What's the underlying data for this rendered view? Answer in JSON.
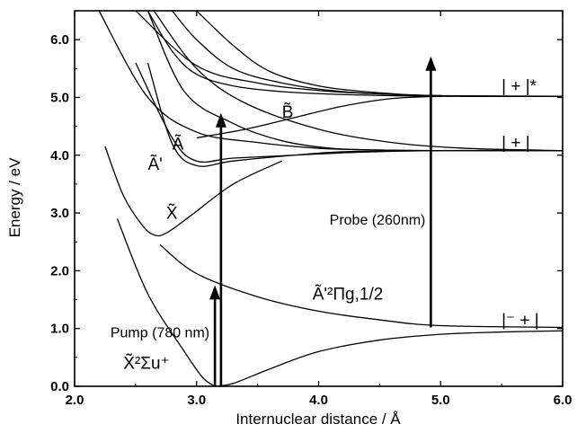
{
  "chart_data": {
    "type": "line",
    "xlabel": "Internuclear distance / Å",
    "ylabel": "Energy / eV",
    "xlim": [
      2.0,
      6.0
    ],
    "ylim": [
      0.0,
      6.5
    ],
    "x_ticks": [
      "2.0",
      "3.0",
      "4.0",
      "5.0",
      "6.0"
    ],
    "y_ticks": [
      "0.0",
      "1.0",
      "2.0",
      "3.0",
      "4.0",
      "5.0",
      "6.0"
    ],
    "series": [
      {
        "x": [
          3.15,
          3.3,
          3.6,
          4.0,
          4.5,
          5.0,
          5.5,
          6.0
        ],
        "y": [
          0.0,
          0.05,
          0.3,
          0.6,
          0.8,
          0.9,
          0.94,
          0.96
        ]
      },
      {
        "x": [
          2.35,
          2.6,
          2.9,
          3.05,
          3.15
        ],
        "y": [
          2.9,
          1.6,
          0.6,
          0.15,
          0.0
        ]
      },
      {
        "x": [
          2.7,
          3.0,
          3.5,
          4.0,
          4.5,
          5.0,
          6.0
        ],
        "y": [
          2.45,
          1.95,
          1.55,
          1.3,
          1.15,
          1.05,
          1.02
        ]
      },
      {
        "x": [
          2.25,
          2.4,
          2.55,
          2.65,
          2.75,
          2.95,
          3.3,
          3.7
        ],
        "y": [
          4.15,
          3.3,
          2.8,
          2.62,
          2.65,
          2.95,
          3.5,
          3.9
        ]
      },
      {
        "x": [
          2.5,
          2.8,
          3.0,
          3.3,
          3.8,
          4.3,
          5.0,
          6.0
        ],
        "y": [
          5.6,
          4.3,
          3.9,
          3.95,
          4.0,
          4.05,
          4.08,
          4.08
        ]
      },
      {
        "x": [
          2.6,
          2.8,
          3.0,
          3.3,
          3.8,
          4.2,
          5.0
        ],
        "y": [
          5.6,
          4.2,
          3.82,
          3.9,
          4.0,
          4.06,
          4.08
        ]
      },
      {
        "x": [
          2.2,
          2.6,
          3.0,
          3.5,
          4.0,
          4.5,
          5.0,
          6.0
        ],
        "y": [
          6.5,
          5.0,
          4.4,
          4.22,
          4.12,
          4.09,
          4.08,
          4.08
        ]
      },
      {
        "x": [
          3.0,
          3.4,
          3.8,
          4.2,
          4.6,
          5.0
        ],
        "y": [
          4.3,
          4.45,
          4.65,
          4.85,
          4.98,
          5.02
        ]
      },
      {
        "x": [
          2.6,
          2.8,
          3.0,
          3.3,
          3.7,
          4.2,
          5.0,
          6.0
        ],
        "y": [
          6.5,
          5.8,
          5.4,
          5.2,
          5.1,
          5.05,
          5.02,
          5.02
        ]
      },
      {
        "x": [
          2.8,
          3.0,
          3.3,
          3.7,
          4.2,
          5.0,
          6.0
        ],
        "y": [
          6.5,
          6.0,
          5.5,
          5.25,
          5.1,
          5.03,
          5.02
        ]
      },
      {
        "x": [
          2.5,
          3.0,
          3.5,
          4.0,
          4.5,
          5.0,
          6.0
        ],
        "y": [
          6.5,
          5.55,
          5.25,
          5.12,
          5.06,
          5.03,
          5.02
        ]
      },
      {
        "x": [
          3.0,
          3.3,
          3.6,
          4.0,
          4.5,
          5.0,
          6.0
        ],
        "y": [
          6.5,
          5.9,
          5.45,
          5.2,
          5.08,
          5.03,
          5.02
        ]
      },
      {
        "x": [
          2.65,
          3.0,
          3.4,
          4.0,
          4.6,
          5.2,
          6.0
        ],
        "y": [
          6.5,
          5.5,
          4.9,
          4.45,
          4.22,
          4.12,
          4.08
        ]
      },
      {
        "x": [
          2.6,
          2.9,
          3.3,
          3.7,
          4.1,
          4.5,
          5.0,
          6.0
        ],
        "y": [
          6.5,
          5.1,
          4.55,
          4.25,
          4.12,
          4.09,
          4.08,
          4.08
        ]
      }
    ],
    "arrows": [
      {
        "label": "Pump (780 nm)",
        "x": 3.15,
        "y_from": 0.0,
        "y_to": 1.72
      },
      {
        "label": "",
        "x": 3.2,
        "y_from": 0.0,
        "y_to": 4.7
      },
      {
        "label": "Probe (260nm)",
        "x": 4.92,
        "y_from": 1.02,
        "y_to": 5.68
      }
    ],
    "annotations": [
      {
        "text": "X̃²Σu⁺",
        "x": 2.4,
        "y": 0.3
      },
      {
        "text": "X̃",
        "x": 2.75,
        "y": 2.9
      },
      {
        "text": "Ã'",
        "x": 2.6,
        "y": 3.75
      },
      {
        "text": "Ã",
        "x": 2.8,
        "y": 4.1
      },
      {
        "text": "B̃",
        "x": 3.7,
        "y": 4.65
      },
      {
        "text": "Ã'²Πg,1/2",
        "x": 3.95,
        "y": 1.5
      },
      {
        "text": "| + |*",
        "x": 5.5,
        "y": 5.1
      },
      {
        "text": "| + |",
        "x": 5.5,
        "y": 4.12
      },
      {
        "text": "|⁻ + |",
        "x": 5.5,
        "y": 1.05
      }
    ]
  }
}
